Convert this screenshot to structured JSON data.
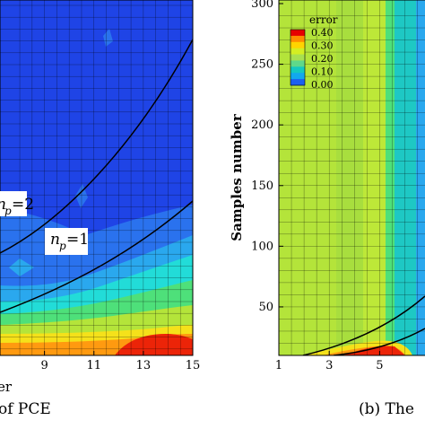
{
  "chart_data": [
    {
      "type": "heatmap",
      "title": "",
      "xlabel_fragment": "er",
      "xticks": [
        "9",
        "11",
        "13",
        "15"
      ],
      "x_range_visible": [
        7.2,
        15
      ],
      "contour_lines": [
        {
          "name": "n_p=2",
          "label_base": "n",
          "label_sub": "p",
          "label_rest": "=2"
        },
        {
          "name": "n_p=1",
          "label_base": "n",
          "label_sub": "p",
          "label_rest": "=1"
        }
      ],
      "caption_fragment": "of PCE"
    },
    {
      "type": "heatmap",
      "title": "",
      "xlabel": "",
      "ylabel": "Samples number",
      "xticks": [
        "1",
        "3",
        "5"
      ],
      "yticks": [
        "50",
        "100",
        "150",
        "200",
        "250",
        "300"
      ],
      "ylim": [
        10,
        300
      ],
      "x_range_visible": [
        1,
        6.8
      ],
      "colorbar": {
        "title": "error",
        "levels": [
          "0.40",
          "0.30",
          "0.20",
          "0.10",
          "0.00"
        ],
        "colors": [
          "#e60000",
          "#ff8c00",
          "#ffd400",
          "#d4ee22",
          "#a8e050",
          "#5fd88a",
          "#14c8c0",
          "#12a8ee",
          "#1c60f0"
        ]
      },
      "caption_fragment": "(b) The"
    }
  ],
  "colors": {
    "deep_blue": "#1f44e6",
    "blue": "#2a72ee",
    "light_blue": "#2aa8ee",
    "cyan": "#22dcd8",
    "green": "#4ee07a",
    "yellow_green": "#b4e43a",
    "yellow": "#f5e11a",
    "orange": "#ff9a10",
    "red": "#ec2408"
  }
}
